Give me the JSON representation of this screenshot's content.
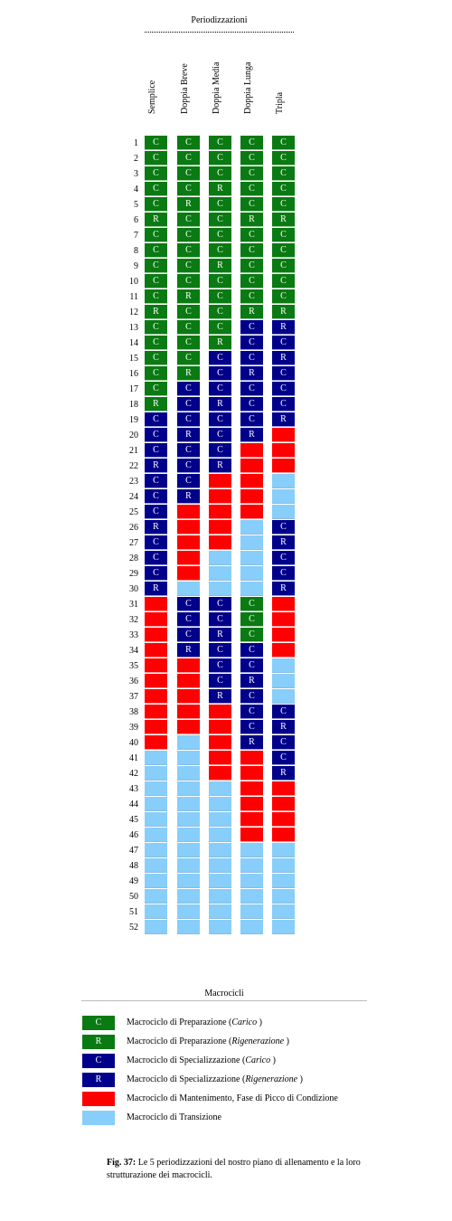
{
  "colors": {
    "C_prep": "#0a7a12",
    "R_prep": "#0a7a12",
    "C_spec": "#00008b",
    "R_spec": "#00008b",
    "M": "#ff0000",
    "T": "#87cefa"
  },
  "chart_data": {
    "type": "table",
    "title": "Periodizzazioni",
    "columns": [
      "Semplice",
      "Doppia Breve",
      "Doppia Media",
      "Doppia Lunga",
      "Tripla"
    ],
    "rows": [
      "1",
      "2",
      "3",
      "4",
      "5",
      "6",
      "7",
      "8",
      "9",
      "10",
      "11",
      "12",
      "13",
      "14",
      "15",
      "16",
      "17",
      "18",
      "19",
      "20",
      "21",
      "22",
      "23",
      "24",
      "25",
      "26",
      "27",
      "28",
      "29",
      "30",
      "31",
      "32",
      "33",
      "34",
      "35",
      "36",
      "37",
      "38",
      "39",
      "40",
      "41",
      "42",
      "43",
      "44",
      "45",
      "46",
      "47",
      "48",
      "49",
      "50",
      "51",
      "52"
    ],
    "legend_codes": [
      "CP=Macrociclo di Preparazione (Carico)",
      "RP=Macrociclo di Preparazione (Rigenerazione)",
      "CS=Macrociclo di Specializzazione (Carico)",
      "RS=Macrociclo di Specializzazione (Rigenerazione)",
      "M=Macrociclo di Mantenimento, Fase di Picco di Condizione",
      "T=Macrociclo di Transizione"
    ],
    "weeks": [
      [
        "CP",
        "CP",
        "CP",
        "CP",
        "CP",
        "RP",
        "CP",
        "CP",
        "CP",
        "CP",
        "CP",
        "RP",
        "CP",
        "CP",
        "CP",
        "CP",
        "CP",
        "RP",
        "CS",
        "CS",
        "CS",
        "RS",
        "CS",
        "CS",
        "CS",
        "RS",
        "CS",
        "CS",
        "CS",
        "RS",
        "M",
        "M",
        "M",
        "M",
        "M",
        "M",
        "M",
        "M",
        "M",
        "M",
        "T",
        "T",
        "T",
        "T",
        "T",
        "T",
        "T",
        "T",
        "T",
        "T",
        "T",
        "T"
      ],
      [
        "CP",
        "CP",
        "CP",
        "CP",
        "RP",
        "CP",
        "CP",
        "CP",
        "CP",
        "CP",
        "RP",
        "CP",
        "CP",
        "CP",
        "CP",
        "RP",
        "CS",
        "CS",
        "CS",
        "RS",
        "CS",
        "CS",
        "CS",
        "RS",
        "M",
        "M",
        "M",
        "M",
        "M",
        "T",
        "CS",
        "CS",
        "CS",
        "RS",
        "M",
        "M",
        "M",
        "M",
        "M",
        "T",
        "T",
        "T",
        "T",
        "T",
        "T",
        "T",
        "T",
        "T",
        "T",
        "T",
        "T",
        "T"
      ],
      [
        "CP",
        "CP",
        "CP",
        "RP",
        "CP",
        "CP",
        "CP",
        "CP",
        "RP",
        "CP",
        "CP",
        "CP",
        "CP",
        "RP",
        "CS",
        "CS",
        "CS",
        "RS",
        "CS",
        "CS",
        "CS",
        "RS",
        "M",
        "M",
        "M",
        "M",
        "M",
        "T",
        "T",
        "T",
        "CS",
        "CS",
        "RS",
        "CS",
        "CS",
        "CS",
        "RS",
        "M",
        "M",
        "M",
        "M",
        "M",
        "T",
        "T",
        "T",
        "T",
        "T",
        "T",
        "T",
        "T",
        "T",
        "T"
      ],
      [
        "CP",
        "CP",
        "CP",
        "CP",
        "CP",
        "RP",
        "CP",
        "CP",
        "CP",
        "CP",
        "CP",
        "RP",
        "CS",
        "CS",
        "CS",
        "RS",
        "CS",
        "CS",
        "CS",
        "RS",
        "M",
        "M",
        "M",
        "M",
        "M",
        "T",
        "T",
        "T",
        "T",
        "T",
        "CP",
        "CP",
        "CP",
        "CS",
        "CS",
        "RS",
        "CS",
        "CS",
        "CS",
        "RS",
        "M",
        "M",
        "M",
        "M",
        "M",
        "M",
        "T",
        "T",
        "T",
        "T",
        "T",
        "T"
      ],
      [
        "CP",
        "CP",
        "CP",
        "CP",
        "CP",
        "RP",
        "CP",
        "CP",
        "CP",
        "CP",
        "CP",
        "RP",
        "RS",
        "CS",
        "RS",
        "CS",
        "CS",
        "CS",
        "RS",
        "M",
        "M",
        "M",
        "T",
        "T",
        "T",
        "CS",
        "RS",
        "CS",
        "CS",
        "RS",
        "M",
        "M",
        "M",
        "M",
        "T",
        "T",
        "T",
        "CS",
        "RS",
        "CS",
        "CS",
        "RS",
        "M",
        "M",
        "M",
        "M",
        "T",
        "T",
        "T",
        "T",
        "T",
        "T"
      ]
    ]
  },
  "legend": {
    "title": "Macrocicli",
    "items": [
      {
        "code": "C",
        "color": "#0a7a12",
        "label_a": "Macrociclo di Preparazione (",
        "label_i": "Carico",
        "label_b": ")"
      },
      {
        "code": "R",
        "color": "#0a7a12",
        "label_a": "Macrociclo di Preparazione (",
        "label_i": "Rigenerazione",
        "label_b": ")"
      },
      {
        "code": "C",
        "color": "#00008b",
        "label_a": "Macrociclo di Specializzazione (",
        "label_i": "Carico",
        "label_b": ")"
      },
      {
        "code": "R",
        "color": "#00008b",
        "label_a": "Macrociclo di Specializzazione (",
        "label_i": "Rigenerazione",
        "label_b": ")"
      },
      {
        "code": "",
        "color": "#ff0000",
        "label_a": "Macrociclo di Mantenimento, Fase di Picco di Condizione",
        "label_i": "",
        "label_b": ""
      },
      {
        "code": "",
        "color": "#87cefa",
        "label_a": "Macrociclo di Transizione",
        "label_i": "",
        "label_b": ""
      }
    ]
  },
  "caption": {
    "fig": "Fig. 37:",
    "text": "Le 5 periodizzazioni del nostro piano di allenamento e la loro strutturazione dei macrocicli."
  }
}
